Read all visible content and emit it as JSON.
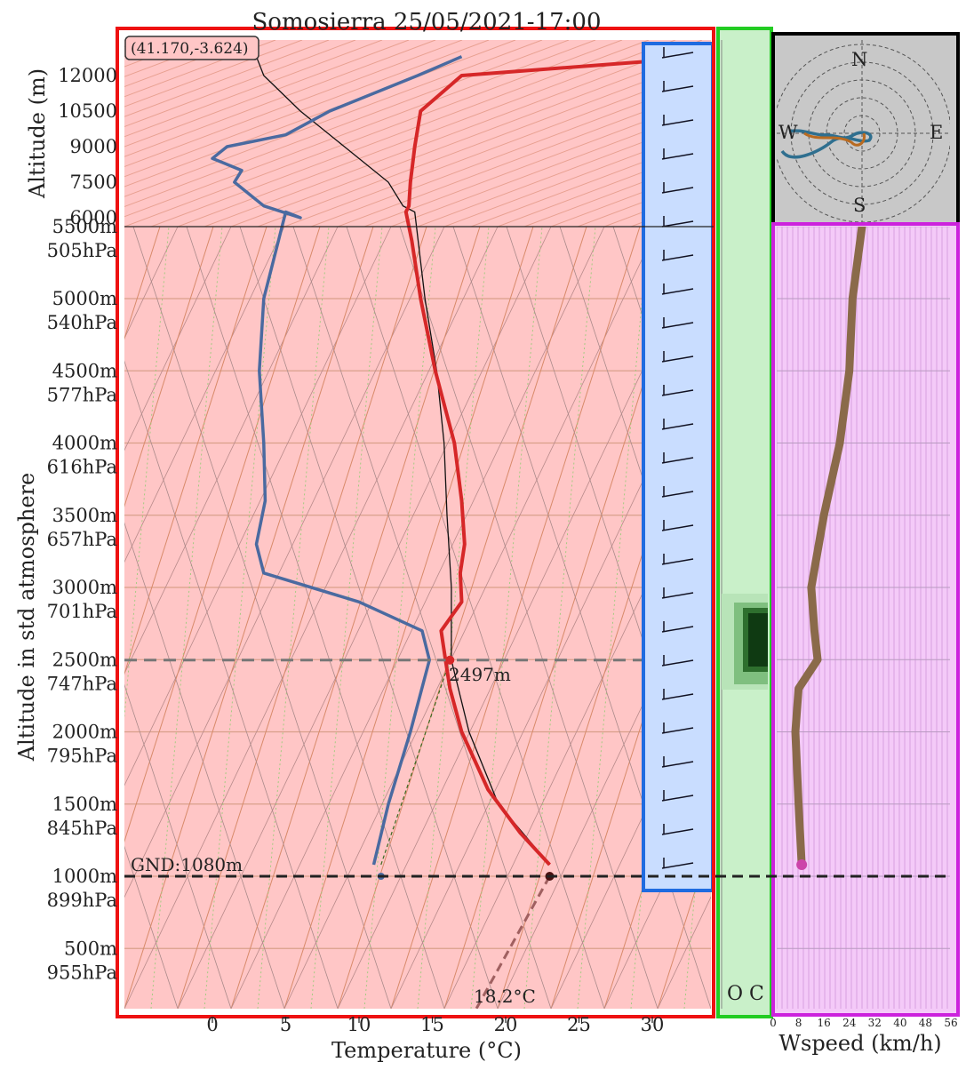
{
  "chart_data": {
    "type": "line",
    "title": "Somosierra 25/05/2021-17:00",
    "coordinates": "(41.170,-3.624)",
    "xlabel": "Temperature (°C)",
    "ylabel_top": "Altitude (m)",
    "ylabel_bottom": "Altitude in std atmosphere",
    "x_ticks": [
      "0",
      "5",
      "10",
      "15",
      "20",
      "25",
      "30"
    ],
    "xlim": [
      -6,
      34
    ],
    "upper_altitude_ticks": [
      "12000",
      "10500",
      "9000",
      "7500",
      "6000"
    ],
    "lower_altitude_ticks": [
      {
        "alt": "5500m",
        "p": "505hPa"
      },
      {
        "alt": "5000m",
        "p": "540hPa"
      },
      {
        "alt": "4500m",
        "p": "577hPa"
      },
      {
        "alt": "4000m",
        "p": "616hPa"
      },
      {
        "alt": "3500m",
        "p": "657hPa"
      },
      {
        "alt": "3000m",
        "p": "701hPa"
      },
      {
        "alt": "2500m",
        "p": "747hPa"
      },
      {
        "alt": "2000m",
        "p": "795hPa"
      },
      {
        "alt": "1500m",
        "p": "845hPa"
      },
      {
        "alt": "1000m",
        "p": "899hPa"
      },
      {
        "alt": "500m",
        "p": "955hPa"
      }
    ],
    "ground_label": "GND:1080m",
    "cloud_base_label": "2497m",
    "surface_temp_label": "18.2°C",
    "cloud_cover_labels": "O C",
    "windspeed_xlabel": "Wspeed (km/h)",
    "windspeed_ticks": [
      "0",
      "8",
      "16",
      "24",
      "32",
      "40",
      "48",
      "56"
    ],
    "hodograph_labels": {
      "n": "N",
      "e": "E",
      "s": "S",
      "w": "W"
    },
    "series": [
      {
        "role": "temperature",
        "color": "#d62728",
        "altitude_m": [
          1080,
          1300,
          1600,
          2000,
          2300,
          2497,
          2700,
          2900,
          3100,
          3300,
          3600,
          4000,
          4500,
          5000,
          5400,
          5600,
          6500,
          7500,
          9000,
          10500,
          12000,
          12800
        ],
        "temp_c": [
          23.0,
          21.0,
          18.8,
          17.0,
          16.2,
          15.9,
          15.6,
          17.0,
          16.9,
          17.2,
          17.0,
          16.5,
          15.2,
          14.2,
          13.6,
          13.2,
          13.4,
          13.5,
          13.8,
          14.2,
          17.0,
          34.0
        ]
      },
      {
        "role": "dewpoint",
        "color": "#4a6aa0",
        "altitude_m": [
          1080,
          1500,
          2000,
          2497,
          2700,
          2900,
          3100,
          3300,
          3600,
          4000,
          4500,
          5000,
          5400,
          5600,
          6000,
          6500,
          7500,
          8000,
          8500,
          9000,
          9500,
          10500,
          12000,
          12800
        ],
        "dewpoint_c": [
          11.0,
          12.0,
          13.5,
          14.8,
          14.3,
          10.0,
          3.5,
          3.0,
          3.6,
          3.5,
          3.2,
          3.5,
          4.5,
          5.0,
          6.0,
          3.5,
          1.5,
          2.0,
          0.0,
          1.0,
          5.0,
          8.0,
          14.0,
          17.0
        ]
      }
    ],
    "windspeed_profile": {
      "altitude_m": [
        1080,
        1500,
        2000,
        2300,
        2500,
        2700,
        3000,
        3500,
        4000,
        4500,
        5000,
        5500
      ],
      "speed_kmh": [
        9,
        8,
        7,
        8,
        14,
        13,
        12,
        16,
        21,
        24,
        25,
        28
      ]
    },
    "cloud_layer_altitude_m": [
      2600,
      3000
    ]
  }
}
